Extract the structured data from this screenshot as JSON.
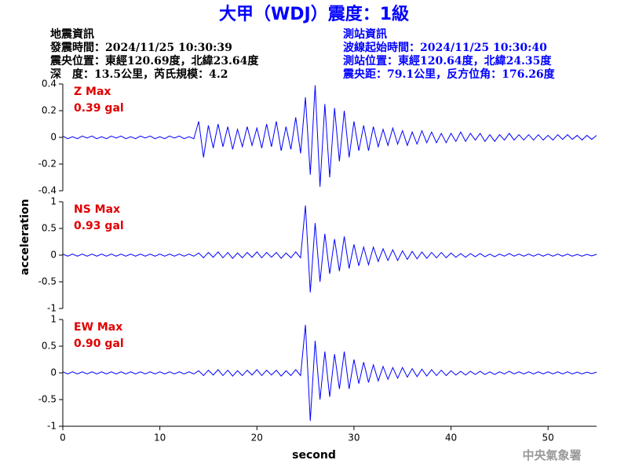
{
  "title": "大甲（WDJ）震度：1級",
  "header": {
    "left": [
      "地震資訊",
      "發震時間：2024/11/25 10:30:39",
      "震央位置：東經120.69度，北緯23.64度",
      "深　度：13.5公里，芮氏規模：4.2"
    ],
    "right": [
      "測站資訊",
      "波線起始時間：2024/11/25 10:30:40",
      "測站位置：東經120.64度，北緯24.35度",
      "震央距：79.1公里，反方位角：176.26度"
    ]
  },
  "y_label": "acceleration",
  "x_label": "second",
  "footer": "中央氣象署",
  "chart_data": [
    {
      "type": "line",
      "label": "Z Max",
      "max_label": "0.39 gal",
      "color": "#0000ff",
      "xlim": [
        0,
        55
      ],
      "ylim": [
        -0.4,
        0.4
      ],
      "yticks": [
        -0.4,
        -0.2,
        0,
        0.2,
        0.4
      ],
      "x": [
        0,
        0.5,
        1,
        1.5,
        2,
        2.5,
        3,
        3.5,
        4,
        4.5,
        5,
        5.5,
        6,
        6.5,
        7,
        7.5,
        8,
        8.5,
        9,
        9.5,
        10,
        10.5,
        11,
        11.5,
        12,
        12.5,
        13,
        13.5,
        14,
        14.5,
        15,
        15.5,
        16,
        16.5,
        17,
        17.5,
        18,
        18.5,
        19,
        19.5,
        20,
        20.5,
        21,
        21.5,
        22,
        22.5,
        23,
        23.5,
        24,
        24.5,
        25,
        25.5,
        26,
        26.5,
        27,
        27.5,
        28,
        28.5,
        29,
        29.5,
        30,
        30.5,
        31,
        31.5,
        32,
        32.5,
        33,
        33.5,
        34,
        34.5,
        35,
        35.5,
        36,
        36.5,
        37,
        37.5,
        38,
        38.5,
        39,
        39.5,
        40,
        40.5,
        41,
        41.5,
        42,
        42.5,
        43,
        43.5,
        44,
        44.5,
        45,
        45.5,
        46,
        46.5,
        47,
        47.5,
        48,
        48.5,
        49,
        49.5,
        50,
        50.5,
        51,
        51.5,
        52,
        52.5,
        53,
        53.5,
        54,
        54.5,
        55
      ],
      "values": [
        0.01,
        -0.01,
        0.005,
        -0.01,
        0.01,
        -0.005,
        0.01,
        -0.01,
        0.005,
        -0.01,
        0.01,
        -0.005,
        0.01,
        -0.01,
        0.005,
        -0.01,
        0.01,
        -0.005,
        0.01,
        -0.01,
        0.005,
        -0.01,
        0.01,
        -0.005,
        0.01,
        -0.01,
        0.005,
        -0.01,
        0.12,
        -0.15,
        0.09,
        -0.08,
        0.1,
        -0.07,
        0.08,
        -0.09,
        0.06,
        -0.07,
        0.08,
        -0.06,
        0.07,
        -0.08,
        0.1,
        -0.07,
        0.12,
        -0.1,
        0.08,
        -0.09,
        0.15,
        -0.12,
        0.3,
        -0.28,
        0.39,
        -0.37,
        0.25,
        -0.3,
        0.22,
        -0.18,
        0.2,
        -0.15,
        0.12,
        -0.1,
        0.09,
        -0.1,
        0.08,
        -0.07,
        0.06,
        -0.06,
        0.07,
        -0.05,
        0.05,
        -0.06,
        0.04,
        -0.05,
        0.05,
        -0.04,
        0.04,
        -0.04,
        0.03,
        -0.04,
        0.03,
        -0.03,
        0.04,
        -0.03,
        0.03,
        -0.02,
        0.03,
        -0.03,
        0.02,
        -0.03,
        0.02,
        -0.02,
        0.03,
        -0.02,
        0.02,
        -0.02,
        0.02,
        -0.02,
        0.02,
        -0.02,
        0.015,
        -0.02,
        0.02,
        -0.015,
        0.02,
        -0.015,
        0.015,
        -0.02,
        0.015,
        -0.015,
        0.015
      ]
    },
    {
      "type": "line",
      "label": "NS Max",
      "max_label": "0.93 gal",
      "color": "#0000ff",
      "xlim": [
        0,
        55
      ],
      "ylim": [
        -1,
        1
      ],
      "yticks": [
        -1,
        -0.5,
        0,
        0.5,
        1
      ],
      "x": [
        0,
        0.5,
        1,
        1.5,
        2,
        2.5,
        3,
        3.5,
        4,
        4.5,
        5,
        5.5,
        6,
        6.5,
        7,
        7.5,
        8,
        8.5,
        9,
        9.5,
        10,
        10.5,
        11,
        11.5,
        12,
        12.5,
        13,
        13.5,
        14,
        14.5,
        15,
        15.5,
        16,
        16.5,
        17,
        17.5,
        18,
        18.5,
        19,
        19.5,
        20,
        20.5,
        21,
        21.5,
        22,
        22.5,
        23,
        23.5,
        24,
        24.5,
        25,
        25.5,
        26,
        26.5,
        27,
        27.5,
        28,
        28.5,
        29,
        29.5,
        30,
        30.5,
        31,
        31.5,
        32,
        32.5,
        33,
        33.5,
        34,
        34.5,
        35,
        35.5,
        36,
        36.5,
        37,
        37.5,
        38,
        38.5,
        39,
        39.5,
        40,
        40.5,
        41,
        41.5,
        42,
        42.5,
        43,
        43.5,
        44,
        44.5,
        45,
        45.5,
        46,
        46.5,
        47,
        47.5,
        48,
        48.5,
        49,
        49.5,
        50,
        50.5,
        51,
        51.5,
        52,
        52.5,
        53,
        53.5,
        54,
        54.5,
        55
      ],
      "values": [
        0.02,
        -0.02,
        0.02,
        -0.02,
        0.02,
        -0.02,
        0.02,
        -0.02,
        0.02,
        -0.02,
        0.02,
        -0.02,
        0.02,
        -0.02,
        0.02,
        -0.02,
        0.02,
        -0.02,
        0.02,
        -0.02,
        0.02,
        -0.02,
        0.02,
        -0.02,
        0.02,
        -0.02,
        0.02,
        -0.02,
        0.04,
        -0.05,
        0.05,
        -0.04,
        0.06,
        -0.05,
        0.05,
        -0.06,
        0.04,
        -0.05,
        0.05,
        -0.04,
        0.06,
        -0.05,
        0.05,
        -0.04,
        0.05,
        -0.06,
        0.04,
        -0.05,
        0.06,
        -0.05,
        0.93,
        -0.7,
        0.6,
        -0.5,
        0.4,
        -0.35,
        0.3,
        -0.3,
        0.35,
        -0.25,
        0.2,
        -0.2,
        0.15,
        -0.18,
        0.15,
        -0.12,
        0.12,
        -0.1,
        0.1,
        -0.1,
        0.08,
        -0.08,
        0.07,
        -0.07,
        0.06,
        -0.06,
        0.05,
        -0.05,
        0.05,
        -0.05,
        0.04,
        -0.04,
        0.03,
        -0.04,
        0.03,
        -0.03,
        0.03,
        -0.03,
        0.02,
        -0.03,
        0.02,
        -0.02,
        0.03,
        -0.02,
        0.02,
        -0.02,
        0.02,
        -0.02,
        0.02,
        -0.02,
        0.02,
        -0.02,
        0.02,
        -0.02,
        0.02,
        -0.02,
        0.015,
        -0.02,
        0.015,
        -0.015,
        0.015
      ]
    },
    {
      "type": "line",
      "label": "EW Max",
      "max_label": "0.90 gal",
      "color": "#0000ff",
      "xlim": [
        0,
        55
      ],
      "xticks": [
        0,
        10,
        20,
        30,
        40,
        50
      ],
      "ylim": [
        -1,
        1
      ],
      "yticks": [
        -1,
        -0.5,
        0,
        0.5,
        1
      ],
      "x": [
        0,
        0.5,
        1,
        1.5,
        2,
        2.5,
        3,
        3.5,
        4,
        4.5,
        5,
        5.5,
        6,
        6.5,
        7,
        7.5,
        8,
        8.5,
        9,
        9.5,
        10,
        10.5,
        11,
        11.5,
        12,
        12.5,
        13,
        13.5,
        14,
        14.5,
        15,
        15.5,
        16,
        16.5,
        17,
        17.5,
        18,
        18.5,
        19,
        19.5,
        20,
        20.5,
        21,
        21.5,
        22,
        22.5,
        23,
        23.5,
        24,
        24.5,
        25,
        25.5,
        26,
        26.5,
        27,
        27.5,
        28,
        28.5,
        29,
        29.5,
        30,
        30.5,
        31,
        31.5,
        32,
        32.5,
        33,
        33.5,
        34,
        34.5,
        35,
        35.5,
        36,
        36.5,
        37,
        37.5,
        38,
        38.5,
        39,
        39.5,
        40,
        40.5,
        41,
        41.5,
        42,
        42.5,
        43,
        43.5,
        44,
        44.5,
        45,
        45.5,
        46,
        46.5,
        47,
        47.5,
        48,
        48.5,
        49,
        49.5,
        50,
        50.5,
        51,
        51.5,
        52,
        52.5,
        53,
        53.5,
        54,
        54.5,
        55
      ],
      "values": [
        0.02,
        -0.02,
        0.02,
        -0.02,
        0.02,
        -0.02,
        0.02,
        -0.02,
        0.02,
        -0.02,
        0.02,
        -0.02,
        0.02,
        -0.02,
        0.02,
        -0.02,
        0.02,
        -0.02,
        0.02,
        -0.02,
        0.02,
        -0.02,
        0.02,
        -0.02,
        0.02,
        -0.02,
        0.02,
        -0.02,
        0.04,
        -0.05,
        0.05,
        -0.04,
        0.06,
        -0.05,
        0.05,
        -0.06,
        0.04,
        -0.05,
        0.05,
        -0.04,
        0.06,
        -0.05,
        0.05,
        -0.04,
        0.05,
        -0.06,
        0.04,
        -0.05,
        0.06,
        -0.05,
        0.9,
        -0.9,
        0.6,
        -0.5,
        0.4,
        -0.45,
        0.35,
        -0.3,
        0.4,
        -0.3,
        0.25,
        -0.2,
        0.2,
        -0.18,
        0.15,
        -0.15,
        0.12,
        -0.12,
        0.1,
        -0.1,
        0.1,
        -0.08,
        0.08,
        -0.07,
        0.07,
        -0.06,
        0.06,
        -0.05,
        0.05,
        -0.05,
        0.04,
        -0.04,
        0.03,
        -0.04,
        0.03,
        -0.03,
        0.03,
        -0.03,
        0.02,
        -0.03,
        0.02,
        -0.02,
        0.03,
        -0.02,
        0.02,
        -0.02,
        0.02,
        -0.02,
        0.02,
        -0.02,
        0.02,
        -0.02,
        0.02,
        -0.02,
        0.02,
        -0.02,
        0.015,
        -0.02,
        0.015,
        -0.015,
        0.015
      ]
    }
  ]
}
